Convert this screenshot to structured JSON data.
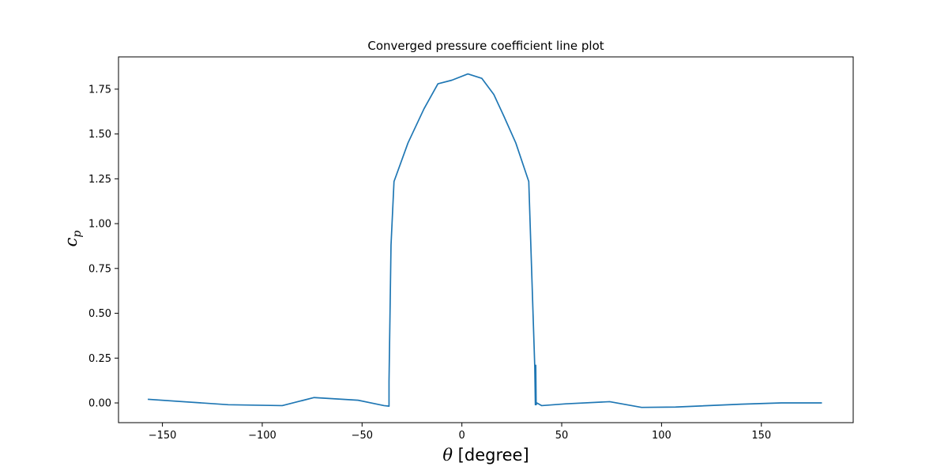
{
  "chart_data": {
    "type": "line",
    "title": "Converged pressure coefficient line plot",
    "xlabel_symbol": "θ",
    "xlabel_unit": " [degree]",
    "ylabel_symbol": "c",
    "ylabel_subscript": "p",
    "xlim": [
      -172,
      196
    ],
    "ylim": [
      -0.11,
      1.93
    ],
    "xticks": [
      -150,
      -100,
      -50,
      0,
      50,
      100,
      150
    ],
    "xtick_labels": [
      "−150",
      "−100",
      "−50",
      "0",
      "50",
      "100",
      "150"
    ],
    "yticks": [
      0.0,
      0.25,
      0.5,
      0.75,
      1.0,
      1.25,
      1.5,
      1.75
    ],
    "ytick_labels": [
      "0.00",
      "0.25",
      "0.50",
      "0.75",
      "1.00",
      "1.25",
      "1.50",
      "1.75"
    ],
    "line_color": "#1f77b4",
    "series": [
      {
        "x": [
          -157,
          -117,
          -90,
          -74,
          -52,
          -39,
          -36.5,
          -36.5,
          -35.5,
          -34,
          -27,
          -19,
          -12,
          -5,
          3,
          10,
          16,
          21,
          27,
          33.5,
          36.5,
          36.8,
          37,
          37.2,
          37.5,
          40,
          52,
          74,
          90,
          107,
          140,
          160,
          180
        ],
        "y": [
          0.02,
          -0.01,
          -0.015,
          0.03,
          0.015,
          -0.015,
          -0.018,
          0.12,
          0.88,
          1.235,
          1.45,
          1.64,
          1.78,
          1.8,
          1.835,
          1.81,
          1.72,
          1.6,
          1.45,
          1.235,
          0.2,
          -0.01,
          0.21,
          -0.01,
          0.0,
          -0.015,
          -0.005,
          0.007,
          -0.025,
          -0.023,
          -0.007,
          0.0,
          0.0
        ]
      }
    ]
  }
}
